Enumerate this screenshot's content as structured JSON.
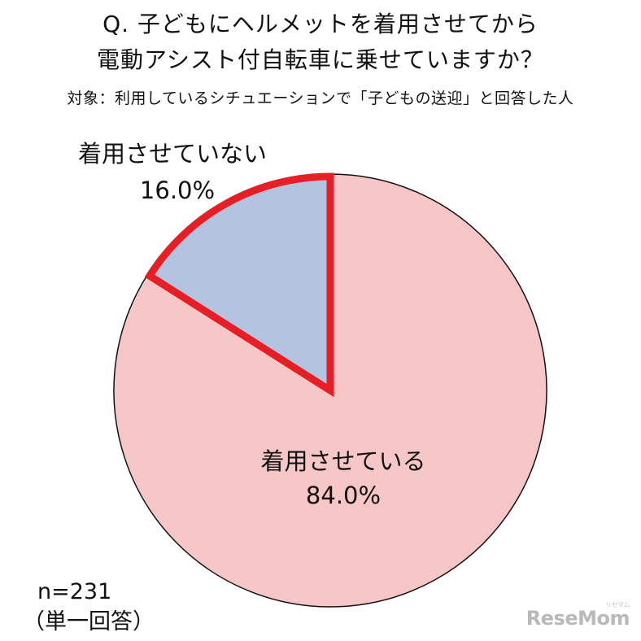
{
  "title_line1": "Q. 子どもにヘルメットを着用させてから",
  "title_line2": "電動アシスト付自転車に乗せていますか？",
  "subtitle": "対象：利用しているシチュエーションで「子どもの送迎」と回答した人",
  "sample": {
    "n": "n=231",
    "type": "（単一回答）"
  },
  "logo": {
    "text": "ReseMom",
    "small": "リセマム"
  },
  "colors": {
    "wearing": "#f7c6c7",
    "not_wearing": "#b4c3df",
    "highlight_border": "#e61e25",
    "outline": "#111111"
  },
  "chart_data": {
    "type": "pie",
    "title": "",
    "categories": [
      "着用させていない",
      "着用させている"
    ],
    "values": [
      16.0,
      84.0
    ],
    "value_labels": [
      "16.0%",
      "84.0%"
    ],
    "start_angle_deg": 0,
    "direction": "counterclockwise-from-top",
    "highlight": "着用させていない"
  }
}
